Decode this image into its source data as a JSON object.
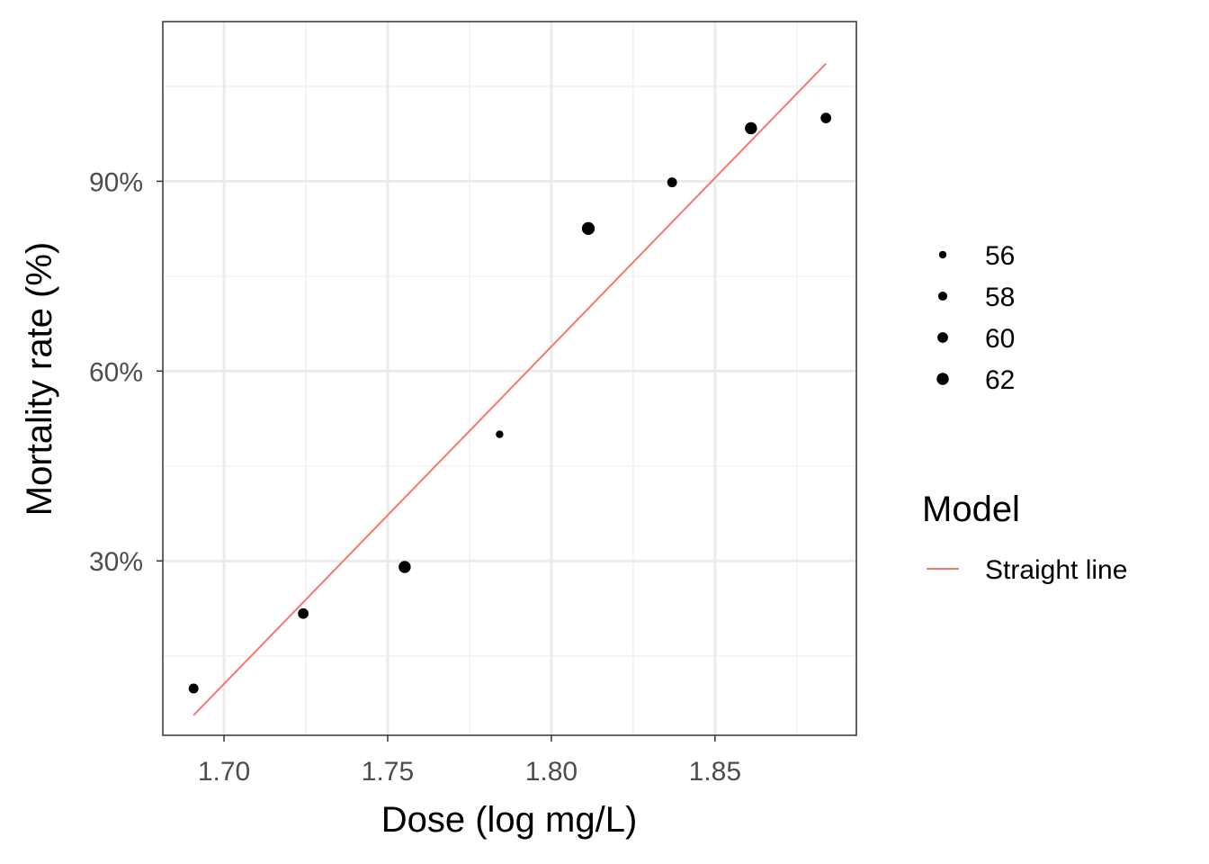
{
  "chart_data": {
    "type": "scatter",
    "title": "",
    "xlabel": "Dose (log mg/L)",
    "ylabel": "Mortality rate (%)",
    "xlim": [
      1.6813,
      1.8932
    ],
    "ylim": [
      0.0243,
      1.1524
    ],
    "x_ticks": [
      {
        "value": 1.7,
        "label": "1.70"
      },
      {
        "value": 1.75,
        "label": "1.75"
      },
      {
        "value": 1.8,
        "label": "1.80"
      },
      {
        "value": 1.85,
        "label": "1.85"
      }
    ],
    "y_ticks": [
      {
        "value": 0.3,
        "label": "30%"
      },
      {
        "value": 0.6,
        "label": "60%"
      },
      {
        "value": 0.9,
        "label": "90%"
      }
    ],
    "grid": true,
    "points": [
      {
        "x": 1.6907,
        "y": 0.0983,
        "size": 59
      },
      {
        "x": 1.7242,
        "y": 0.2167,
        "size": 60
      },
      {
        "x": 1.7552,
        "y": 0.2903,
        "size": 62
      },
      {
        "x": 1.7842,
        "y": 0.5,
        "size": 56
      },
      {
        "x": 1.8113,
        "y": 0.8254,
        "size": 63
      },
      {
        "x": 1.8369,
        "y": 0.8983,
        "size": 59
      },
      {
        "x": 1.861,
        "y": 0.9839,
        "size": 62
      },
      {
        "x": 1.8839,
        "y": 1.0,
        "size": 60
      }
    ],
    "fit_line": {
      "name": "Straight line",
      "color": "#F8766D",
      "x": [
        1.6907,
        1.8839
      ],
      "y": [
        0.056,
        1.086
      ]
    },
    "legend": {
      "placement": "right",
      "size_title": "",
      "size_entries": [
        {
          "label": "56",
          "size": 56
        },
        {
          "label": "58",
          "size": 58
        },
        {
          "label": "60",
          "size": 60
        },
        {
          "label": "62",
          "size": 62
        }
      ],
      "model_title": "Model",
      "model_entries": [
        {
          "label": "Straight line",
          "color": "#F8766D"
        }
      ]
    },
    "colors": {
      "point": "#000000",
      "panel_border": "#333333",
      "grid_major": "#ebebeb",
      "grid_minor": "#f2f2f2",
      "tick_text": "#4d4d4d"
    }
  }
}
